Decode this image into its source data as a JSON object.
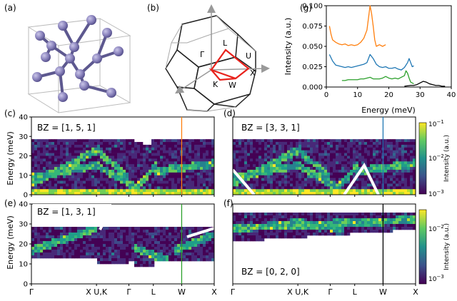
{
  "panel_letters": {
    "a": "(a)",
    "b": "(b)",
    "c": "(c)",
    "d": "(d)",
    "e": "(e)",
    "f": "(f)",
    "g": "(g)"
  },
  "bz_points": {
    "gamma": "Γ",
    "l": "L",
    "u": "U",
    "x": "X",
    "w": "W",
    "k": "K"
  },
  "bz_labels": {
    "c": "BZ = [1, 5, 1]",
    "d": "BZ = [3, 3, 1]",
    "e": "BZ = [1, 3, 1]",
    "f": "BZ = [0, 2, 0]"
  },
  "axis_labels": {
    "energy_mev": "Energy (meV)",
    "intensity_au": "Intensity (a.u.)",
    "energy_x": "Energy (meV)"
  },
  "path_ticks": [
    "Γ",
    "X U,K",
    "Γ",
    "L",
    "W",
    "X"
  ],
  "colorbar_labels": {
    "cb1": "Intensity (a.u.)",
    "cb2": "Intensity (a.u.)"
  },
  "chart_data": [
    {
      "type": "line",
      "panel": "(g)",
      "xlabel": "Energy (meV)",
      "ylabel": "Intensity (a.u.)",
      "xlim": [
        0,
        40
      ],
      "ylim": [
        0,
        0.1
      ],
      "xticks": [
        0,
        10,
        20,
        30,
        40
      ],
      "yticks": [
        "0.000",
        "0.025",
        "0.050",
        "0.075",
        "0.100"
      ],
      "series": [
        {
          "color": "#ff7f0e",
          "x": [
            1,
            1.5,
            2,
            3,
            4,
            5,
            6,
            7,
            8,
            9,
            10,
            11,
            12,
            13,
            13.5,
            14,
            14.5,
            15,
            15.5,
            16,
            17,
            18,
            19
          ],
          "y": [
            0.075,
            0.065,
            0.058,
            0.055,
            0.053,
            0.052,
            0.053,
            0.051,
            0.052,
            0.051,
            0.052,
            0.055,
            0.06,
            0.07,
            0.085,
            0.1,
            0.09,
            0.075,
            0.058,
            0.05,
            0.052,
            0.05,
            0.052
          ]
        },
        {
          "color": "#1f77b4",
          "x": [
            1,
            2,
            3,
            4,
            5,
            6,
            7,
            8,
            9,
            10,
            11,
            12,
            13,
            14,
            15,
            16,
            17,
            18,
            19,
            20,
            21,
            22,
            23,
            24,
            25,
            26,
            26.5,
            27,
            27.5,
            28
          ],
          "y": [
            0.04,
            0.032,
            0.027,
            0.026,
            0.025,
            0.024,
            0.025,
            0.024,
            0.025,
            0.026,
            0.027,
            0.028,
            0.03,
            0.04,
            0.035,
            0.028,
            0.025,
            0.024,
            0.025,
            0.023,
            0.023,
            0.024,
            0.022,
            0.021,
            0.024,
            0.03,
            0.035,
            0.03,
            0.025,
            0.026
          ]
        },
        {
          "color": "#2ca02c",
          "x": [
            5,
            6,
            7,
            8,
            9,
            10,
            11,
            12,
            13,
            14,
            15,
            16,
            17,
            18,
            19,
            20,
            21,
            22,
            23,
            24,
            25,
            25.5,
            26,
            26.5,
            27,
            28
          ],
          "y": [
            0.008,
            0.008,
            0.009,
            0.009,
            0.009,
            0.009,
            0.01,
            0.01,
            0.011,
            0.012,
            0.01,
            0.01,
            0.01,
            0.011,
            0.013,
            0.011,
            0.01,
            0.011,
            0.01,
            0.012,
            0.014,
            0.02,
            0.017,
            0.011,
            0.006,
            0.004
          ]
        },
        {
          "color": "#000000",
          "x": [
            25,
            27,
            28,
            29,
            30,
            31,
            32,
            33,
            34,
            35,
            36,
            37,
            38
          ],
          "y": [
            0.001,
            0.002,
            0.002,
            0.003,
            0.005,
            0.007,
            0.006,
            0.004,
            0.003,
            0.002,
            0.002,
            0.001,
            0.001
          ]
        }
      ]
    },
    {
      "type": "heatmap",
      "panel": "(c)",
      "ylabel": "Energy (meV)",
      "ylim": [
        0,
        40
      ],
      "yticks": [
        0,
        10,
        20,
        30,
        40
      ],
      "categories": [
        "Γ",
        "X U,K",
        "Γ",
        "L",
        "W",
        "X"
      ],
      "vertical_line": {
        "at": "W",
        "color": "#ff7f0e"
      }
    },
    {
      "type": "heatmap",
      "panel": "(d)",
      "categories": [
        "Γ",
        "X U,K",
        "Γ",
        "L",
        "W",
        "X"
      ],
      "vertical_line": {
        "at": "W",
        "color": "#1f77b4"
      },
      "colorbar": {
        "ticks": [
          "10^-1",
          "10^-2",
          "10^-3"
        ],
        "label": "Intensity (a.u.)"
      }
    },
    {
      "type": "heatmap",
      "panel": "(e)",
      "ylabel": "Energy (meV)",
      "ylim": [
        0,
        40
      ],
      "yticks": [
        0,
        10,
        20,
        30,
        40
      ],
      "categories": [
        "Γ",
        "X U,K",
        "Γ",
        "L",
        "W",
        "X"
      ],
      "vertical_line": {
        "at": "W",
        "color": "#2ca02c"
      }
    },
    {
      "type": "heatmap",
      "panel": "(f)",
      "categories": [
        "Γ",
        "X U,K",
        "Γ",
        "L",
        "W",
        "X"
      ],
      "vertical_line": {
        "at": "W",
        "color": "#000000"
      },
      "colorbar": {
        "ticks": [
          "10^-2",
          "10^-3"
        ],
        "label": "Intensity (a.u.)"
      }
    }
  ]
}
